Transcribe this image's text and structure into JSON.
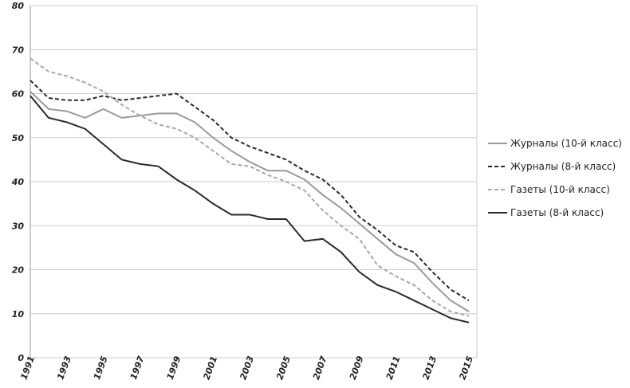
{
  "chart_data": {
    "type": "line",
    "x": [
      1991,
      1992,
      1993,
      1994,
      1995,
      1996,
      1997,
      1998,
      1999,
      2000,
      2001,
      2002,
      2003,
      2004,
      2005,
      2006,
      2007,
      2008,
      2009,
      2010,
      2011,
      2012,
      2013,
      2014,
      2015
    ],
    "xlim": [
      1991,
      2015
    ],
    "xticks": [
      1991,
      1993,
      1995,
      1997,
      1999,
      2001,
      2003,
      2005,
      2007,
      2009,
      2011,
      2013,
      2015
    ],
    "ylim": [
      0,
      80
    ],
    "yticks": [
      0,
      10,
      20,
      30,
      40,
      50,
      60,
      70,
      80
    ],
    "grid": true,
    "legend": "right",
    "series": [
      {
        "name": "Журналы (10-й класс)",
        "color": "#9a9a9a",
        "dashed": false,
        "values": [
          60.5,
          56.5,
          56,
          54.5,
          56.5,
          54.5,
          55,
          55.5,
          55.5,
          53.5,
          50,
          47,
          44.5,
          42.5,
          42.5,
          40.5,
          37,
          34,
          30.5,
          27,
          23.5,
          21.5,
          17,
          13,
          10.5
        ]
      },
      {
        "name": "Журналы (8-й класс)",
        "color": "#2a2a2a",
        "dashed": true,
        "values": [
          63,
          59,
          58.5,
          58.5,
          59.5,
          58.5,
          59,
          59.5,
          60,
          57,
          54,
          50,
          48,
          46.5,
          45,
          42.5,
          40.5,
          37,
          32,
          29,
          25.5,
          24,
          19.5,
          15.5,
          13
        ]
      },
      {
        "name": "Газеты (10-й класс)",
        "color": "#a8a8a8",
        "dashed": true,
        "values": [
          68,
          65,
          64,
          62.5,
          60.5,
          57.5,
          55,
          53,
          52,
          50,
          47,
          44,
          43.5,
          41.5,
          40,
          38,
          33.5,
          30,
          27,
          21,
          18.5,
          16.5,
          13,
          10.5,
          9.5
        ]
      },
      {
        "name": "Газеты (8-й класс)",
        "color": "#2a2a2a",
        "dashed": false,
        "values": [
          59.5,
          54.5,
          53.5,
          52,
          48.5,
          45,
          44,
          43.5,
          40.5,
          38,
          35,
          32.5,
          32.5,
          31.5,
          31.5,
          26.5,
          27,
          24,
          19.5,
          16.5,
          15,
          13,
          11,
          9,
          8
        ]
      }
    ]
  }
}
